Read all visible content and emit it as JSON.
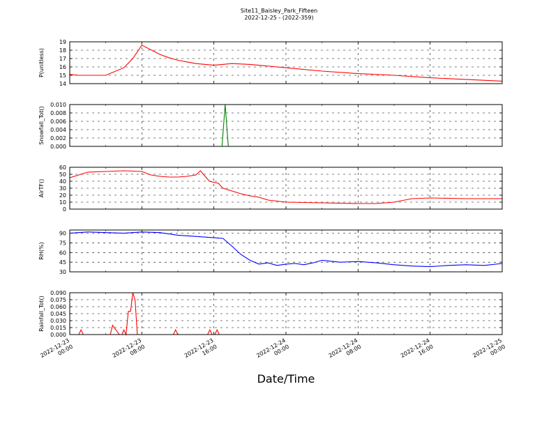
{
  "title": "Site11_Baisley_Park_Fifteen",
  "subtitle": "2022-12-25 - (2022-359)",
  "xlabel": "Date/Time",
  "chart_data": [
    {
      "type": "line",
      "ylabel": "P(unitless)",
      "ylim": [
        14,
        19
      ],
      "yticks": [
        "14",
        "15",
        "16",
        "17",
        "18",
        "19"
      ],
      "grid": true,
      "color": "#ff0000",
      "x": [
        0,
        1,
        2,
        4,
        6,
        7,
        8,
        10,
        11,
        12,
        13,
        14,
        16,
        18,
        20,
        24,
        28,
        32,
        36,
        40,
        48
      ],
      "values": [
        15.1,
        15.0,
        15.0,
        15.0,
        15.9,
        17.0,
        18.6,
        17.5,
        17.1,
        16.8,
        16.6,
        16.4,
        16.2,
        16.4,
        16.3,
        15.9,
        15.5,
        15.2,
        15.0,
        14.7,
        14.3
      ]
    },
    {
      "type": "line",
      "ylabel": "Snowfall_Tot()",
      "ylim": [
        0,
        0.01
      ],
      "yticks": [
        "0.000",
        "0.002",
        "0.004",
        "0.006",
        "0.008",
        "0.010"
      ],
      "grid": true,
      "color": "#008000",
      "x": [
        0,
        16.9,
        17.25,
        17.6,
        48
      ],
      "values": [
        0,
        0,
        0.01,
        0,
        0
      ]
    },
    {
      "type": "line",
      "ylabel": "AirTF()",
      "ylim": [
        0,
        60
      ],
      "yticks": [
        "0",
        "10",
        "20",
        "30",
        "40",
        "50",
        "60"
      ],
      "grid": true,
      "color": "#ff0000",
      "x": [
        0,
        2,
        4,
        6,
        8,
        9,
        10,
        11,
        12,
        13,
        14,
        14.5,
        15.5,
        16.5,
        17,
        18,
        19,
        20,
        21,
        22,
        24,
        28,
        32,
        34,
        36,
        38,
        40,
        44,
        48
      ],
      "values": [
        45,
        53,
        54,
        55,
        54,
        49,
        47,
        46,
        46,
        47,
        49,
        55,
        40,
        37,
        30,
        26,
        22,
        19,
        17,
        13,
        10,
        9,
        8,
        8,
        10,
        15,
        16,
        15,
        15
      ]
    },
    {
      "type": "line",
      "ylabel": "RH(%)",
      "ylim": [
        30,
        95
      ],
      "yticks": [
        "30",
        "45",
        "60",
        "75",
        "90"
      ],
      "grid": true,
      "color": "#0000ff",
      "x": [
        0,
        2,
        4,
        6,
        8,
        10,
        12,
        14,
        16,
        17,
        18,
        19,
        20,
        21,
        22,
        23,
        24,
        25,
        26,
        27,
        28,
        30,
        32,
        34,
        36,
        38,
        40,
        42,
        44,
        46,
        48
      ],
      "values": [
        90,
        92,
        91,
        90,
        92,
        91,
        87,
        85,
        83,
        82,
        70,
        57,
        48,
        42,
        44,
        40,
        42,
        43,
        41,
        44,
        48,
        45,
        46,
        44,
        41,
        39,
        38,
        40,
        41,
        40,
        43
      ]
    },
    {
      "type": "line",
      "ylabel": "Rainfall_Tot()",
      "ylim": [
        0,
        0.09
      ],
      "yticks": [
        "0.000",
        "0.015",
        "0.030",
        "0.045",
        "0.060",
        "0.075",
        "0.090"
      ],
      "grid": true,
      "color": "#ff0000",
      "x": [
        0,
        1.0,
        1.25,
        1.5,
        4.5,
        4.75,
        5.5,
        5.8,
        6.0,
        6.25,
        6.5,
        6.75,
        7.0,
        7.25,
        7.5,
        7.8,
        11.5,
        11.75,
        12.0,
        15.3,
        15.55,
        15.8,
        16.1,
        16.35,
        16.6,
        48
      ],
      "values": [
        0,
        0,
        0.01,
        0,
        0,
        0.02,
        0,
        0,
        0.01,
        0,
        0.05,
        0.05,
        0.09,
        0.075,
        0,
        0,
        0,
        0.01,
        0,
        0,
        0.01,
        0,
        0,
        0.01,
        0,
        0
      ]
    }
  ],
  "x_axis": {
    "unit": "hours since 2022-12-23 00:00",
    "range": [
      0,
      48
    ],
    "tick_values": [
      0,
      8,
      16,
      24,
      32,
      40,
      48
    ],
    "tick_dates": [
      "2022-12-23",
      "2022-12-23",
      "2022-12-23",
      "2022-12-24",
      "2022-12-24",
      "2022-12-24",
      "2022-12-25"
    ],
    "tick_times": [
      "00:00",
      "08:00",
      "16:00",
      "00:00",
      "08:00",
      "16:00",
      "00:00"
    ]
  }
}
